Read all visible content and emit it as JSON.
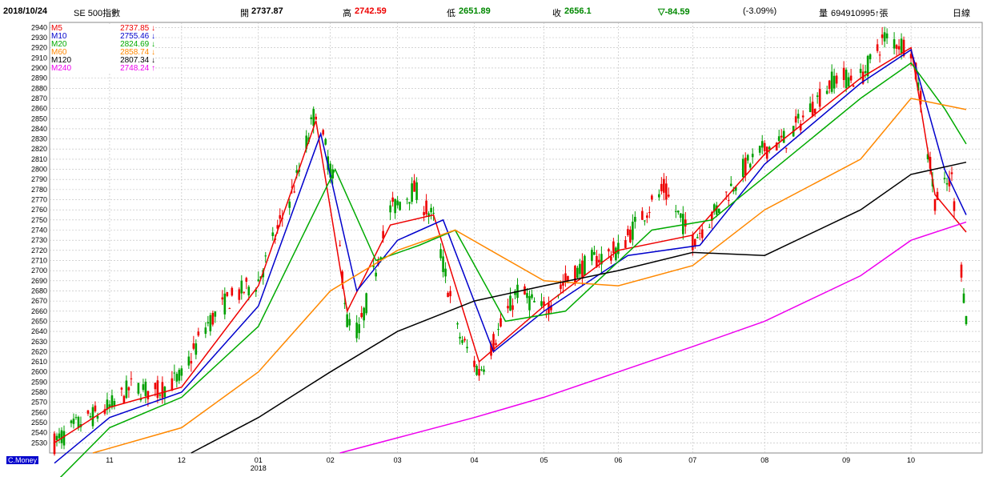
{
  "header": {
    "date": "2018/10/24",
    "symbol": "SE 500指數",
    "open_label": "開",
    "open_value": "2737.87",
    "high_label": "高",
    "high_value": "2742.59",
    "low_label": "低",
    "low_value": "2651.89",
    "close_label": "收",
    "close_value": "2656.1",
    "change": "▽-84.59",
    "change_pct": "(-3.09%)",
    "volume_label": "量",
    "volume_value": "694910995↑張",
    "period": "日線"
  },
  "footer": {
    "source_tag": "C.Money"
  },
  "colors": {
    "up": "#ee0000",
    "down": "#00a000",
    "M5": "#ee0000",
    "M10": "#0000cc",
    "M20": "#00aa00",
    "M60": "#ff8800",
    "M120": "#000000",
    "M240": "#ee00ee"
  },
  "chart_data": {
    "type": "line",
    "title": "",
    "ylim": [
      2520,
      2945
    ],
    "y_ticks": [
      2530,
      2540,
      2550,
      2560,
      2570,
      2580,
      2590,
      2600,
      2610,
      2620,
      2630,
      2640,
      2650,
      2660,
      2670,
      2680,
      2690,
      2700,
      2710,
      2720,
      2730,
      2740,
      2750,
      2760,
      2770,
      2780,
      2790,
      2800,
      2810,
      2820,
      2830,
      2840,
      2850,
      2860,
      2870,
      2880,
      2890,
      2900,
      2910,
      2920,
      2930,
      2940
    ],
    "x_range": [
      "2017-10-09",
      "2018-10-24"
    ],
    "x_ticks": [
      {
        "label": "11",
        "date": "2017-11-01"
      },
      {
        "label": "12",
        "date": "2017-12-01"
      },
      {
        "label": "01",
        "sublabel": "2018",
        "date": "2018-01-02"
      },
      {
        "label": "02",
        "date": "2018-02-01"
      },
      {
        "label": "03",
        "date": "2018-03-01"
      },
      {
        "label": "04",
        "date": "2018-04-02"
      },
      {
        "label": "05",
        "date": "2018-05-01"
      },
      {
        "label": "06",
        "date": "2018-06-01"
      },
      {
        "label": "07",
        "date": "2018-07-02"
      },
      {
        "label": "08",
        "date": "2018-08-01"
      },
      {
        "label": "09",
        "date": "2018-09-04"
      },
      {
        "label": "10",
        "date": "2018-10-01"
      }
    ],
    "grid": true,
    "legend_position": "top-left",
    "legend": [
      {
        "name": "M5",
        "value": "2737.85",
        "arrow": "↓"
      },
      {
        "name": "M10",
        "value": "2755.46",
        "arrow": "↓"
      },
      {
        "name": "M20",
        "value": "2824.69",
        "arrow": "↓"
      },
      {
        "name": "M60",
        "value": "2858.74",
        "arrow": "↓"
      },
      {
        "name": "M120",
        "value": "2807.34",
        "arrow": "↓"
      },
      {
        "name": "M240",
        "value": "2748.24",
        "arrow": "↑"
      }
    ],
    "series": [
      {
        "name": "Close",
        "x": [
          "2017-10-09",
          "2017-10-20",
          "2017-11-01",
          "2017-11-10",
          "2017-11-20",
          "2017-12-01",
          "2017-12-11",
          "2017-12-20",
          "2018-01-02",
          "2018-01-10",
          "2018-01-18",
          "2018-01-26",
          "2018-02-02",
          "2018-02-08",
          "2018-02-13",
          "2018-02-26",
          "2018-03-08",
          "2018-03-16",
          "2018-03-26",
          "2018-04-04",
          "2018-04-12",
          "2018-04-20",
          "2018-05-01",
          "2018-05-10",
          "2018-05-21",
          "2018-06-01",
          "2018-06-11",
          "2018-06-20",
          "2018-07-02",
          "2018-07-12",
          "2018-07-23",
          "2018-08-01",
          "2018-08-10",
          "2018-08-20",
          "2018-08-30",
          "2018-09-10",
          "2018-09-20",
          "2018-10-01",
          "2018-10-05",
          "2018-10-11",
          "2018-10-18",
          "2018-10-24"
        ],
        "values": [
          2530,
          2550,
          2565,
          2585,
          2580,
          2595,
          2645,
          2670,
          2690,
          2740,
          2790,
          2860,
          2790,
          2650,
          2640,
          2760,
          2780,
          2750,
          2640,
          2600,
          2640,
          2680,
          2660,
          2690,
          2710,
          2720,
          2755,
          2780,
          2730,
          2760,
          2800,
          2820,
          2830,
          2860,
          2890,
          2890,
          2930,
          2920,
          2870,
          2770,
          2790,
          2656
        ]
      },
      {
        "name": "M5",
        "x": [
          "2017-10-09",
          "2017-11-01",
          "2017-12-01",
          "2018-01-02",
          "2018-01-26",
          "2018-02-08",
          "2018-02-26",
          "2018-03-16",
          "2018-04-04",
          "2018-05-01",
          "2018-06-01",
          "2018-07-02",
          "2018-08-01",
          "2018-09-10",
          "2018-10-01",
          "2018-10-11",
          "2018-10-24"
        ],
        "values": [
          2530,
          2565,
          2585,
          2685,
          2848,
          2660,
          2745,
          2755,
          2610,
          2665,
          2720,
          2735,
          2815,
          2890,
          2920,
          2775,
          2738
        ]
      },
      {
        "name": "M10",
        "x": [
          "2017-10-09",
          "2017-11-01",
          "2017-12-01",
          "2018-01-02",
          "2018-01-28",
          "2018-02-12",
          "2018-03-01",
          "2018-03-20",
          "2018-04-10",
          "2018-05-01",
          "2018-06-05",
          "2018-07-05",
          "2018-08-01",
          "2018-09-10",
          "2018-10-01",
          "2018-10-15",
          "2018-10-24"
        ],
        "values": [
          2510,
          2555,
          2580,
          2665,
          2835,
          2680,
          2730,
          2750,
          2620,
          2660,
          2715,
          2725,
          2805,
          2885,
          2918,
          2800,
          2755
        ]
      },
      {
        "name": "M20",
        "x": [
          "2017-10-09",
          "2017-11-01",
          "2017-12-01",
          "2018-01-02",
          "2018-02-03",
          "2018-02-20",
          "2018-03-10",
          "2018-03-25",
          "2018-04-15",
          "2018-05-10",
          "2018-06-15",
          "2018-07-10",
          "2018-08-10",
          "2018-09-10",
          "2018-10-01",
          "2018-10-15",
          "2018-10-24"
        ],
        "values": [
          2490,
          2545,
          2575,
          2645,
          2800,
          2710,
          2725,
          2740,
          2650,
          2660,
          2740,
          2750,
          2810,
          2870,
          2905,
          2860,
          2825
        ]
      },
      {
        "name": "M60",
        "x": [
          "2017-10-25",
          "2017-12-01",
          "2018-01-02",
          "2018-02-01",
          "2018-03-01",
          "2018-03-25",
          "2018-05-01",
          "2018-06-01",
          "2018-07-02",
          "2018-08-01",
          "2018-09-10",
          "2018-10-01",
          "2018-10-24"
        ],
        "values": [
          2520,
          2545,
          2600,
          2680,
          2720,
          2740,
          2690,
          2685,
          2705,
          2760,
          2810,
          2870,
          2859
        ]
      },
      {
        "name": "M120",
        "x": [
          "2017-12-05",
          "2018-01-02",
          "2018-02-01",
          "2018-03-01",
          "2018-04-02",
          "2018-05-01",
          "2018-06-01",
          "2018-07-02",
          "2018-08-01",
          "2018-09-10",
          "2018-10-01",
          "2018-10-24"
        ],
        "values": [
          2520,
          2555,
          2600,
          2640,
          2670,
          2685,
          2700,
          2718,
          2715,
          2760,
          2795,
          2807
        ]
      },
      {
        "name": "M240",
        "x": [
          "2018-02-05",
          "2018-03-01",
          "2018-04-02",
          "2018-05-01",
          "2018-06-01",
          "2018-07-02",
          "2018-08-01",
          "2018-09-10",
          "2018-10-01",
          "2018-10-24"
        ],
        "values": [
          2520,
          2535,
          2555,
          2575,
          2600,
          2625,
          2650,
          2695,
          2730,
          2748
        ]
      }
    ]
  }
}
